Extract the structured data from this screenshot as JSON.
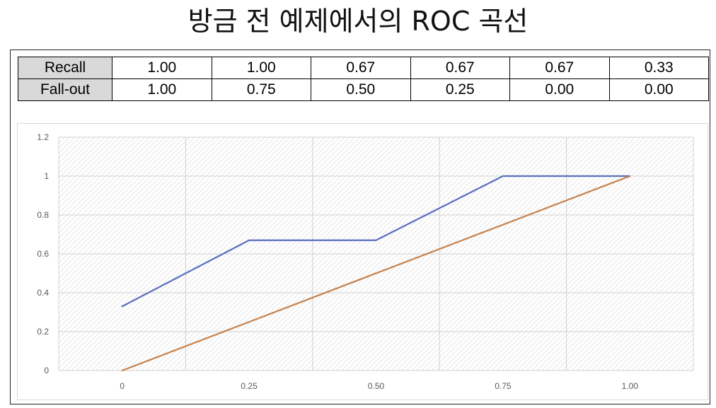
{
  "title": "방금 전 예제에서의 ROC 곡선",
  "table": {
    "rows": [
      {
        "label": "Recall",
        "values": [
          "1.00",
          "1.00",
          "0.67",
          "0.67",
          "0.67",
          "0.33"
        ]
      },
      {
        "label": "Fall-out",
        "values": [
          "1.00",
          "0.75",
          "0.50",
          "0.25",
          "0.00",
          "0.00"
        ]
      }
    ]
  },
  "chart_data": {
    "type": "line",
    "title": "",
    "xlabel": "",
    "ylabel": "",
    "x_tick_labels": [
      "0",
      "0.25",
      "0.50",
      "0.75",
      "1.00"
    ],
    "y_tick_labels": [
      "0",
      "0.2",
      "0.4",
      "0.6",
      "0.8",
      "1",
      "1.2"
    ],
    "xlim": [
      -0.125,
      1.125
    ],
    "ylim": [
      0,
      1.2
    ],
    "grid": true,
    "legend": "none",
    "series": [
      {
        "color": "#5b70c0",
        "x": [
          0,
          0.25,
          0.5,
          0.75,
          1.0
        ],
        "y": [
          0.33,
          0.67,
          0.67,
          1.0,
          1.0
        ]
      },
      {
        "color": "#c5834f",
        "x": [
          0,
          1.0
        ],
        "y": [
          0,
          1.0
        ]
      }
    ]
  }
}
